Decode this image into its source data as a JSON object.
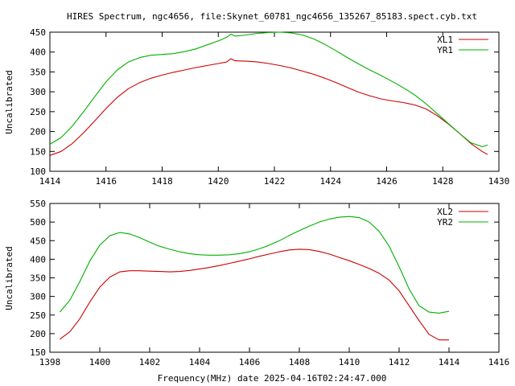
{
  "title": "HIRES Spectrum, ngc4656, file:Skynet_60781_ngc4656_135267_85183.spect.cyb.txt",
  "xlabel": "Frequency(MHz) date 2025-04-16T02:24:47.000",
  "chart_data": [
    {
      "type": "line",
      "xlim": [
        1414,
        1430
      ],
      "ylim": [
        100,
        450
      ],
      "xticks": [
        1414,
        1416,
        1418,
        1420,
        1422,
        1424,
        1426,
        1428,
        1430
      ],
      "yticks": [
        100,
        150,
        200,
        250,
        300,
        350,
        400,
        450
      ],
      "ylabel": "Uncalibrated",
      "legend_position": "top-right",
      "grid": false,
      "series": [
        {
          "name": "XL1",
          "color": "#cc0000",
          "x": [
            1414.0,
            1414.4,
            1414.8,
            1415.2,
            1415.6,
            1416.0,
            1416.4,
            1416.8,
            1417.2,
            1417.6,
            1418.0,
            1418.4,
            1418.8,
            1419.2,
            1419.6,
            1420.0,
            1420.3,
            1420.45,
            1420.6,
            1421.0,
            1421.4,
            1421.8,
            1422.2,
            1422.6,
            1423.0,
            1423.4,
            1423.8,
            1424.2,
            1424.6,
            1425.0,
            1425.4,
            1425.8,
            1426.2,
            1426.6,
            1427.0,
            1427.4,
            1427.8,
            1428.2,
            1428.6,
            1429.0,
            1429.4,
            1429.6
          ],
          "y": [
            140,
            150,
            170,
            197,
            227,
            258,
            286,
            308,
            323,
            334,
            342,
            349,
            355,
            361,
            366,
            371,
            375,
            383,
            378,
            377,
            375,
            371,
            366,
            360,
            352,
            344,
            334,
            323,
            311,
            299,
            290,
            282,
            277,
            273,
            267,
            257,
            240,
            219,
            195,
            170,
            150,
            142
          ]
        },
        {
          "name": "YR1",
          "color": "#00b000",
          "x": [
            1414.0,
            1414.4,
            1414.8,
            1415.2,
            1415.6,
            1416.0,
            1416.4,
            1416.8,
            1417.2,
            1417.6,
            1418.0,
            1418.4,
            1418.8,
            1419.2,
            1419.6,
            1420.0,
            1420.3,
            1420.45,
            1420.6,
            1421.0,
            1421.4,
            1421.8,
            1422.2,
            1422.6,
            1423.0,
            1423.4,
            1423.8,
            1424.2,
            1424.6,
            1425.0,
            1425.4,
            1425.8,
            1426.2,
            1426.6,
            1427.0,
            1427.4,
            1427.8,
            1428.2,
            1428.6,
            1429.0,
            1429.4,
            1429.6
          ],
          "y": [
            168,
            185,
            214,
            250,
            288,
            325,
            355,
            375,
            386,
            392,
            394,
            396,
            401,
            408,
            418,
            428,
            437,
            445,
            440,
            443,
            447,
            449,
            450,
            448,
            443,
            433,
            419,
            403,
            386,
            370,
            355,
            341,
            326,
            310,
            292,
            270,
            245,
            220,
            195,
            172,
            162,
            166
          ]
        }
      ]
    },
    {
      "type": "line",
      "xlim": [
        1398,
        1416
      ],
      "ylim": [
        150,
        550
      ],
      "xticks": [
        1398,
        1400,
        1402,
        1404,
        1406,
        1408,
        1410,
        1412,
        1414,
        1416
      ],
      "yticks": [
        150,
        200,
        250,
        300,
        350,
        400,
        450,
        500,
        550
      ],
      "ylabel": "Uncalibrated",
      "legend_position": "top-right",
      "grid": false,
      "series": [
        {
          "name": "XL2",
          "color": "#cc0000",
          "x": [
            1398.4,
            1398.8,
            1399.2,
            1399.6,
            1400.0,
            1400.4,
            1400.8,
            1401.2,
            1401.6,
            1402.0,
            1402.4,
            1402.8,
            1403.2,
            1403.6,
            1404.0,
            1404.4,
            1404.8,
            1405.2,
            1405.6,
            1406.0,
            1406.4,
            1406.8,
            1407.2,
            1407.6,
            1408.0,
            1408.4,
            1408.8,
            1409.2,
            1409.6,
            1410.0,
            1410.4,
            1410.8,
            1411.2,
            1411.6,
            1412.0,
            1412.4,
            1412.8,
            1413.2,
            1413.6,
            1414.0
          ],
          "y": [
            185,
            205,
            240,
            285,
            325,
            352,
            366,
            369,
            369,
            368,
            367,
            366,
            367,
            370,
            374,
            378,
            383,
            389,
            395,
            401,
            408,
            414,
            420,
            425,
            427,
            426,
            421,
            414,
            405,
            396,
            386,
            375,
            362,
            344,
            315,
            275,
            235,
            198,
            183,
            183
          ]
        },
        {
          "name": "YR2",
          "color": "#00b000",
          "x": [
            1398.4,
            1398.8,
            1399.2,
            1399.6,
            1400.0,
            1400.4,
            1400.8,
            1401.2,
            1401.6,
            1402.0,
            1402.4,
            1402.8,
            1403.2,
            1403.6,
            1404.0,
            1404.4,
            1404.8,
            1405.2,
            1405.6,
            1406.0,
            1406.4,
            1406.8,
            1407.2,
            1407.6,
            1408.0,
            1408.4,
            1408.8,
            1409.2,
            1409.6,
            1410.0,
            1410.4,
            1410.8,
            1411.2,
            1411.6,
            1412.0,
            1412.4,
            1412.8,
            1413.2,
            1413.6,
            1414.0
          ],
          "y": [
            258,
            290,
            340,
            395,
            438,
            463,
            472,
            468,
            458,
            446,
            435,
            427,
            420,
            415,
            412,
            411,
            411,
            412,
            415,
            420,
            428,
            438,
            450,
            464,
            477,
            489,
            500,
            508,
            513,
            515,
            512,
            500,
            475,
            435,
            380,
            320,
            275,
            258,
            255,
            260
          ]
        }
      ]
    }
  ]
}
